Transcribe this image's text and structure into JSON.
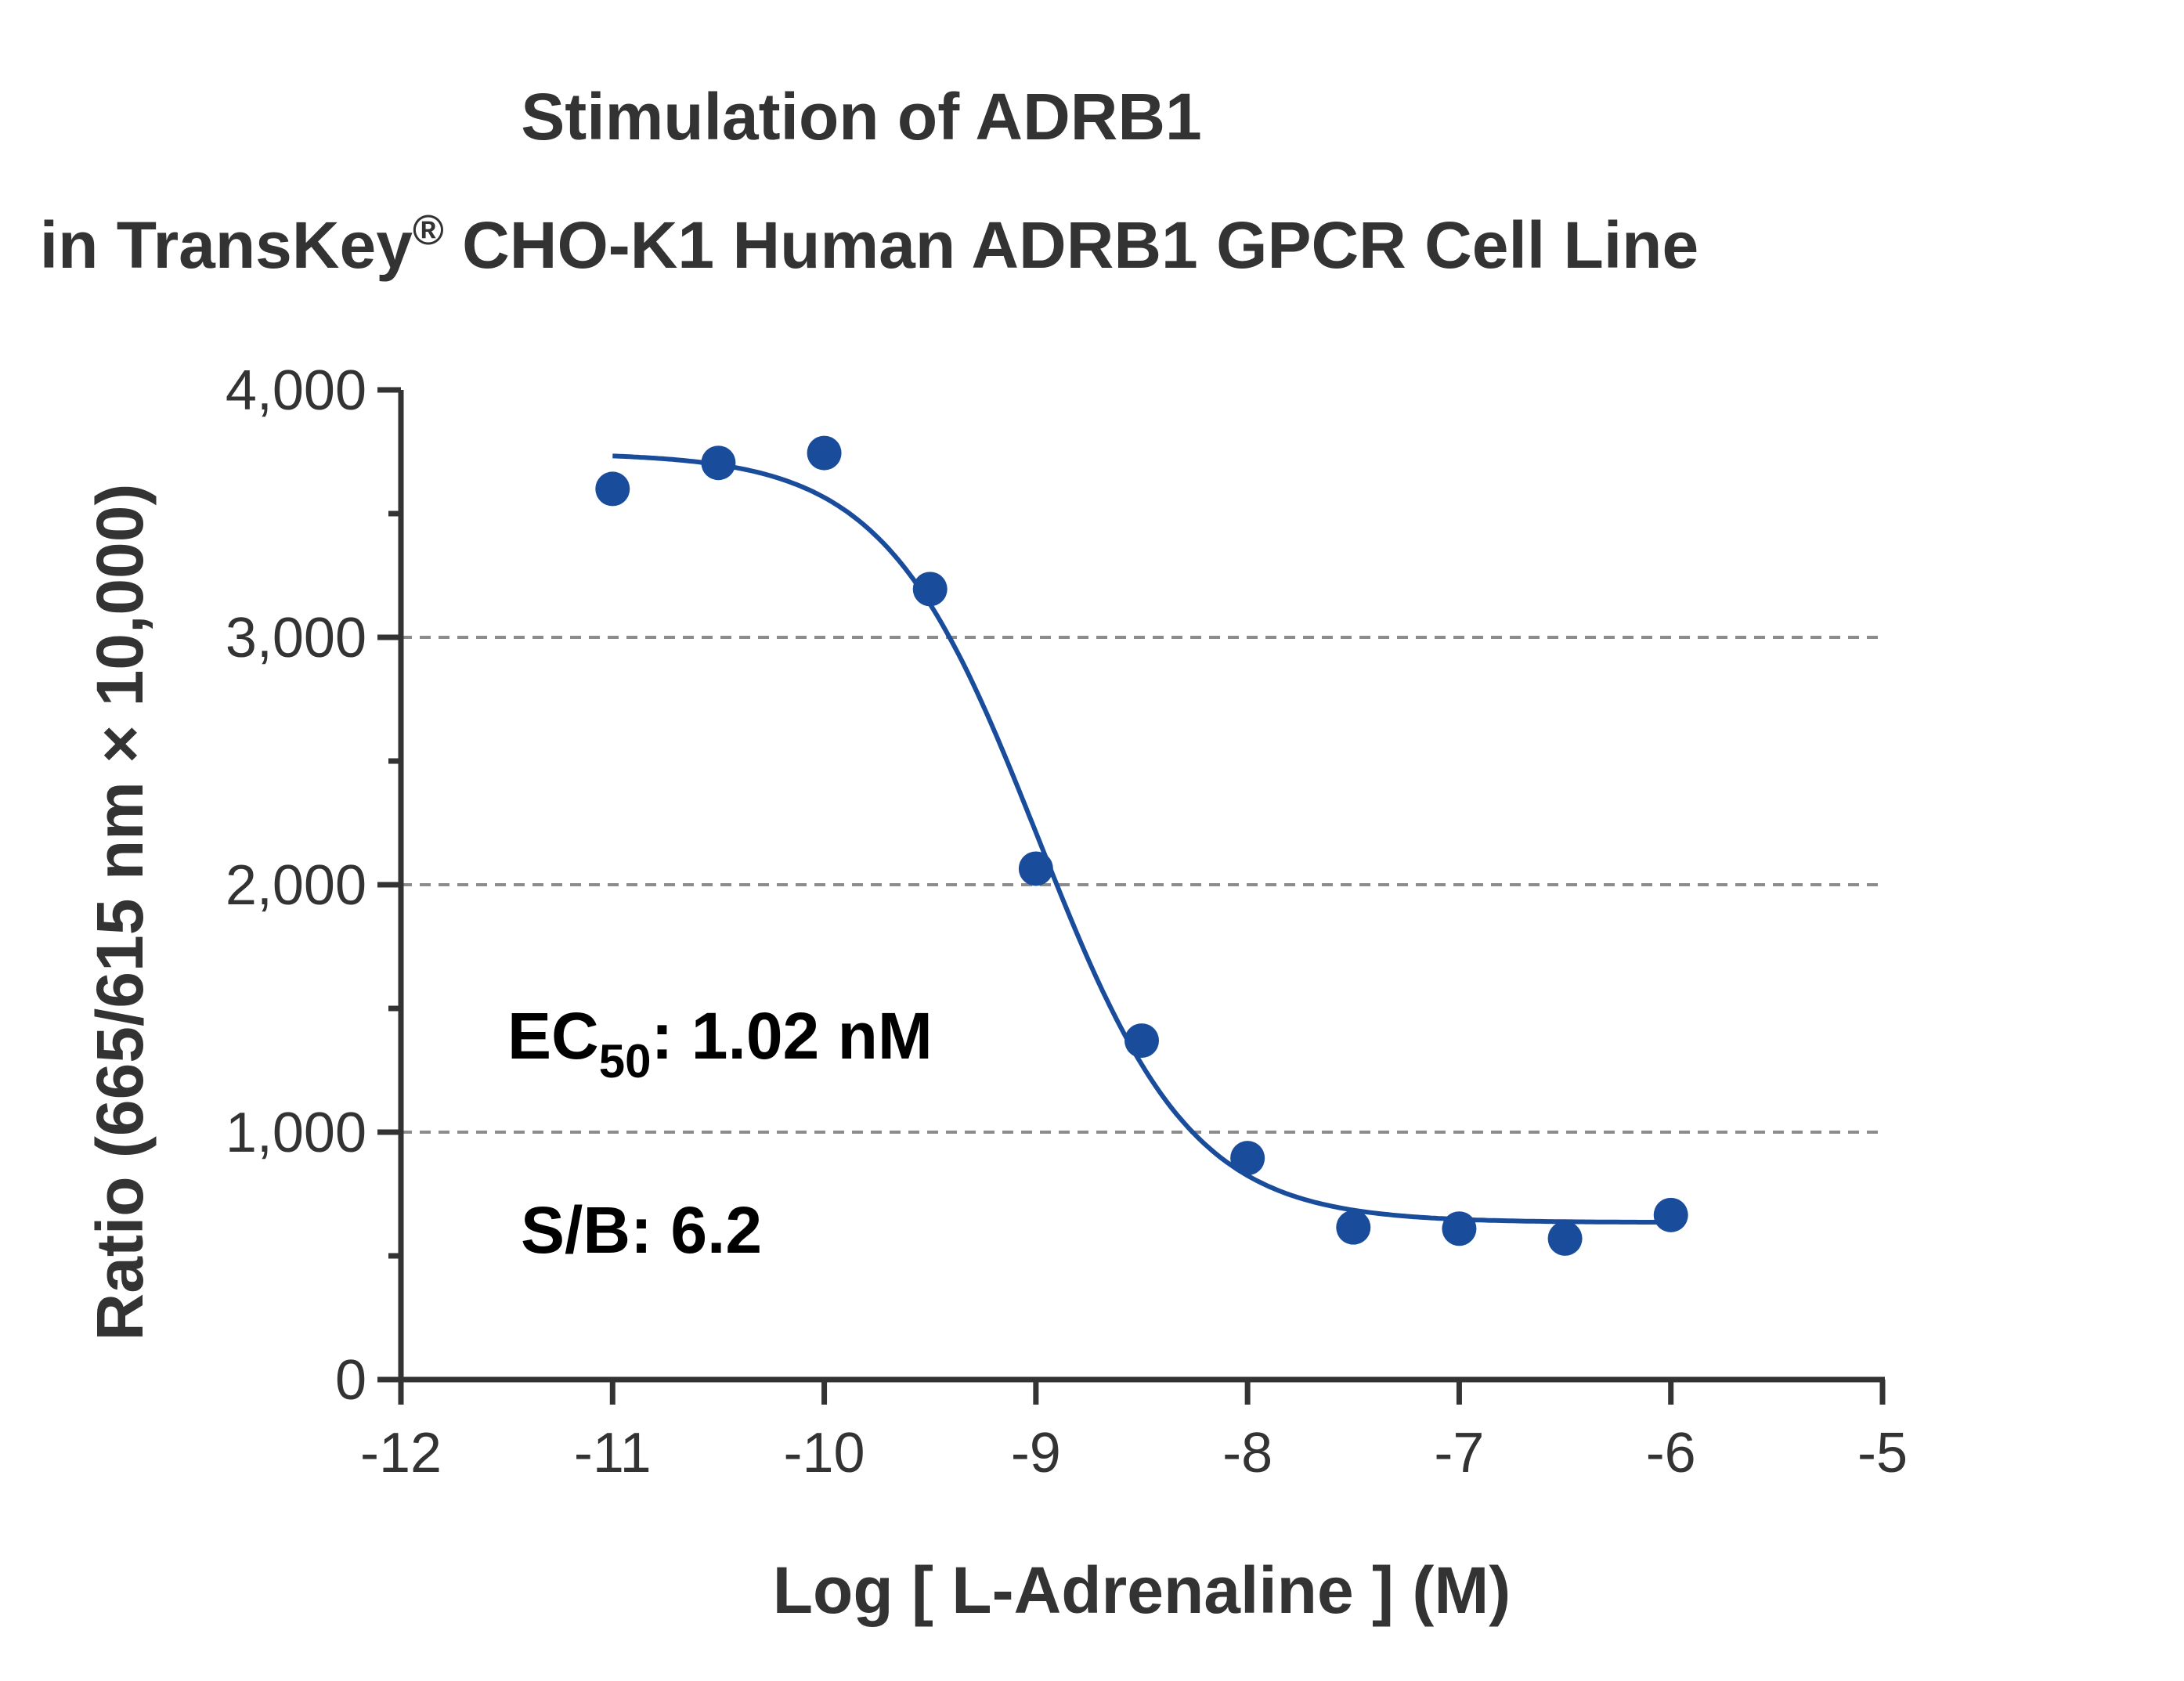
{
  "chart_data": {
    "type": "scatter",
    "title": "Stimulation of  ADRB1",
    "subtitle": {
      "prefix": "in TransKey",
      "mark": "®",
      "suffix": " CHO-K1 Human ADRB1 GPCR Cell Line"
    },
    "xlabel": "Log [ L-Adrenaline ]  (M)",
    "ylabel": "Ratio (665/615 nm × 10,000)",
    "xlim": [
      -12,
      -5
    ],
    "ylim": [
      0,
      4000
    ],
    "x_ticks": [
      -12,
      -11,
      -10,
      -9,
      -8,
      -7,
      -6,
      -5
    ],
    "x_tick_labels": [
      "-12",
      "-11",
      "-10",
      "-9",
      "-8",
      "-7",
      "-6",
      "-5"
    ],
    "y_ticks": [
      0,
      1000,
      2000,
      3000,
      4000
    ],
    "y_tick_labels": [
      "0",
      "1,000",
      "2,000",
      "3,000",
      "4,000"
    ],
    "y_minor_ticks": [
      500,
      1500,
      2500,
      3500
    ],
    "grid": {
      "y_dashed": [
        1000,
        2000,
        3000
      ]
    },
    "series": [
      {
        "color": "#1a4c9c",
        "x": [
          -11,
          -10.5,
          -10,
          -9.5,
          -9,
          -8.5,
          -8,
          -7.5,
          -7,
          -6.5,
          -6
        ],
        "y": [
          3600,
          3705,
          3745,
          3195,
          2065,
          1370,
          895,
          615,
          610,
          570,
          665
        ]
      }
    ],
    "fit": {
      "model": "four-parameter logistic",
      "top": 3745,
      "bottom": 635,
      "log_ec50": -8.99,
      "hill": 1.2,
      "x_range": [
        -11,
        -6
      ]
    },
    "annotations": {
      "ec50": {
        "prefix": "EC",
        "sub": "50",
        "suffix": ": 1.02 nM"
      },
      "sb": "S/B: 6.2"
    }
  }
}
